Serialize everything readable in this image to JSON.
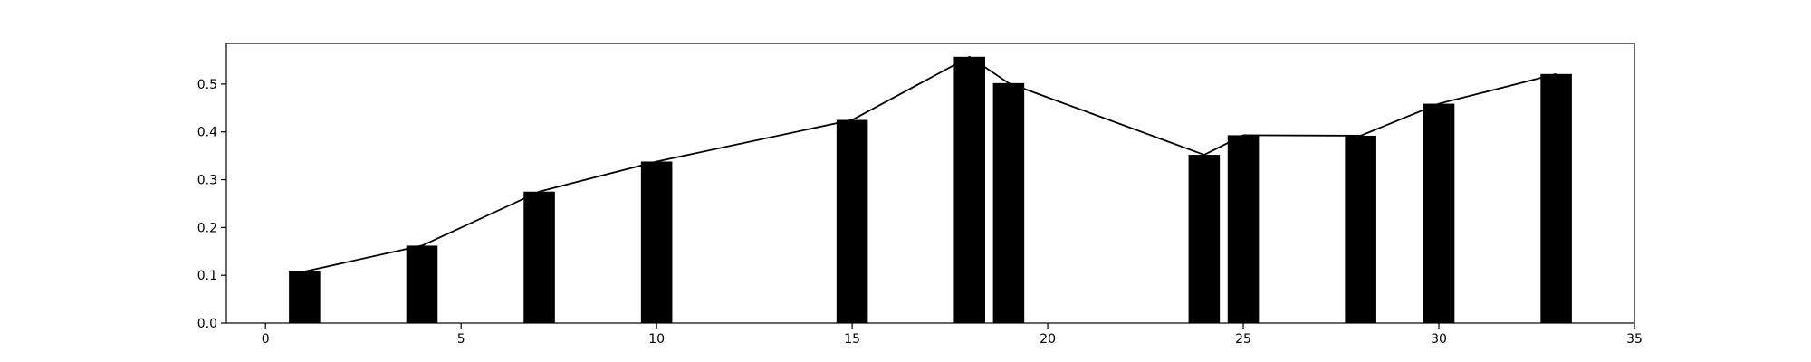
{
  "chart_data": {
    "type": "bar",
    "title": "",
    "xlabel": "",
    "ylabel": "",
    "xlim": [
      -1,
      35
    ],
    "ylim": [
      0,
      0.585
    ],
    "grid": false,
    "legend": "none",
    "x_ticks": [
      0,
      5,
      10,
      15,
      20,
      25,
      30,
      35
    ],
    "x_tick_labels": [
      "0",
      "5",
      "10",
      "15",
      "20",
      "25",
      "30",
      "35"
    ],
    "y_ticks": [
      0.0,
      0.1,
      0.2,
      0.3,
      0.4,
      0.5
    ],
    "y_tick_labels": [
      "0.0",
      "0.1",
      "0.2",
      "0.3",
      "0.4",
      "0.5"
    ],
    "bar_width": 0.8,
    "bar_color": "#000000",
    "line_color": "#000000",
    "x": [
      1,
      4,
      7,
      10,
      15,
      18,
      19,
      24,
      25,
      28,
      30,
      33
    ],
    "values": [
      0.108,
      0.162,
      0.275,
      0.338,
      0.425,
      0.557,
      0.502,
      0.352,
      0.393,
      0.392,
      0.459,
      0.521
    ],
    "line": {
      "x": [
        1,
        4,
        7,
        10,
        15,
        18,
        19,
        24,
        25,
        28,
        30,
        33
      ],
      "values": [
        0.108,
        0.162,
        0.275,
        0.338,
        0.425,
        0.557,
        0.502,
        0.352,
        0.393,
        0.392,
        0.459,
        0.521
      ]
    }
  }
}
